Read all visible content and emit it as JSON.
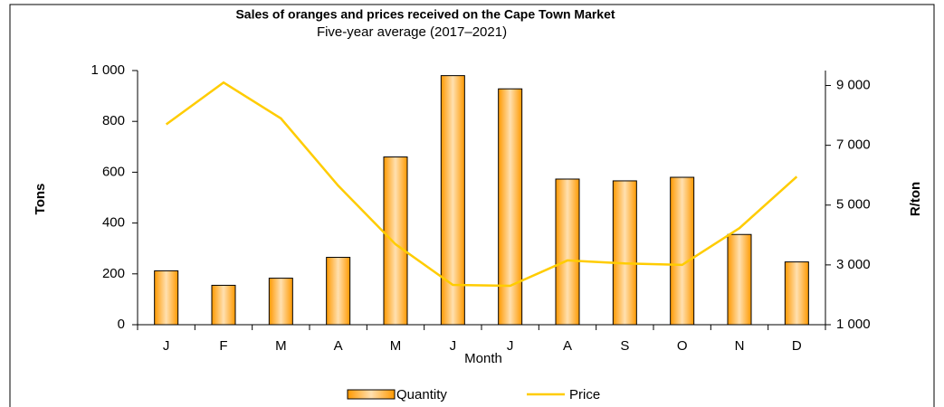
{
  "chart_data": {
    "type": "bar",
    "title": "Sales of oranges and prices received on the Cape Town Market",
    "subtitle": "Five-year average (2017–2021)",
    "x_label": "Month",
    "y_label": "Tons",
    "y2_label": "R/ton",
    "categories": [
      "J",
      "F",
      "M",
      "A",
      "M",
      "J",
      "J",
      "A",
      "S",
      "O",
      "N",
      "D"
    ],
    "series": [
      {
        "name": "Quantity",
        "type": "bar",
        "color": "#ff9900",
        "values": [
          212,
          155,
          183,
          265,
          660,
          980,
          928,
          573,
          566,
          580,
          355,
          247
        ]
      },
      {
        "name": "Price",
        "type": "line",
        "axis": "y2",
        "color": "#ffcc00",
        "values": [
          7700,
          9100,
          7900,
          5650,
          3690,
          2330,
          2300,
          3150,
          3050,
          3000,
          4230,
          5950
        ]
      }
    ],
    "ylim": [
      0,
      1000
    ],
    "yticks": [
      0,
      200,
      400,
      600,
      800,
      {
        "value": 1000,
        "label": "1 000"
      }
    ],
    "y2lim": [
      1000,
      9500
    ],
    "y2ticks": [
      {
        "value": 1000,
        "label": "1 000"
      },
      {
        "value": 3000,
        "label": "3 000"
      },
      {
        "value": 5000,
        "label": "5 000"
      },
      {
        "value": 7000,
        "label": "7 000"
      },
      {
        "value": 9000,
        "label": "9 000"
      }
    ],
    "legend": "bottom"
  }
}
